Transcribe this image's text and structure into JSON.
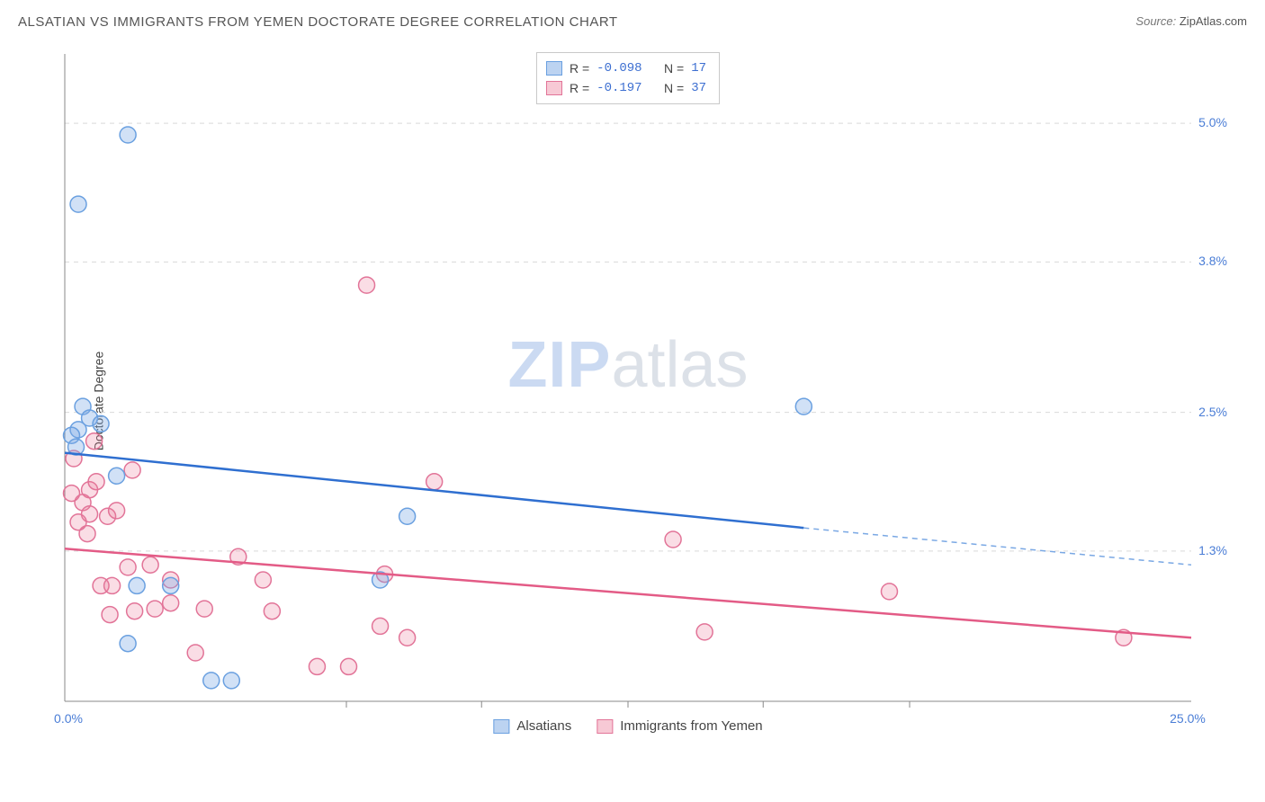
{
  "header": {
    "title": "ALSATIAN VS IMMIGRANTS FROM YEMEN DOCTORATE DEGREE CORRELATION CHART",
    "source_label": "Source:",
    "source_name": "ZipAtlas.com"
  },
  "watermark": {
    "zip": "ZIP",
    "atlas": "atlas"
  },
  "chart": {
    "type": "scatter-with-regression",
    "ylabel": "Doctorate Degree",
    "xlim": [
      0,
      25
    ],
    "ylim": [
      0,
      5.6
    ],
    "x_axis": {
      "min_label": "0.0%",
      "max_label": "25.0%",
      "tick_positions_pct": [
        25,
        37,
        50,
        62,
        75
      ]
    },
    "y_gridlines": [
      {
        "value": 1.3,
        "label": "1.3%"
      },
      {
        "value": 2.5,
        "label": "2.5%"
      },
      {
        "value": 3.8,
        "label": "3.8%"
      },
      {
        "value": 5.0,
        "label": "5.0%"
      }
    ],
    "colors": {
      "blue_stroke": "#6aa0e0",
      "blue_fill": "rgba(122,168,228,0.35)",
      "blue_line": "#2f6fd0",
      "blue_dash": "#7aa8e4",
      "pink_stroke": "#e27498",
      "pink_fill": "rgba(235,120,150,0.25)",
      "pink_line": "#e35b86",
      "grid": "#d9d9d9",
      "tick_text": "#4a7dd6",
      "background_color": "#ffffff"
    },
    "marker_radius": 9,
    "line_width": 2.5,
    "font_family": "Arial",
    "title_fontsize": 15,
    "ytick_fontsize": 14,
    "stats_legend": {
      "rows": [
        {
          "color": "blue",
          "R_label": "R =",
          "R": "-0.098",
          "N_label": "N =",
          "N": "17"
        },
        {
          "color": "pink",
          "R_label": "R =",
          "R": "-0.197",
          "N_label": "N =",
          "N": "37"
        }
      ]
    },
    "bottom_legend": {
      "series1": {
        "label": "Alsatians",
        "color": "blue"
      },
      "series2": {
        "label": "Immigrants from Yemen",
        "color": "pink"
      }
    },
    "series_blue": {
      "points": [
        [
          0.3,
          2.35
        ],
        [
          0.15,
          2.3
        ],
        [
          0.4,
          2.55
        ],
        [
          0.55,
          2.45
        ],
        [
          0.8,
          2.4
        ],
        [
          0.25,
          2.2
        ],
        [
          0.3,
          4.3
        ],
        [
          1.4,
          4.9
        ],
        [
          1.15,
          1.95
        ],
        [
          1.6,
          1.0
        ],
        [
          2.35,
          1.0
        ],
        [
          7.6,
          1.6
        ],
        [
          7.0,
          1.05
        ],
        [
          3.25,
          0.18
        ],
        [
          3.7,
          0.18
        ],
        [
          1.4,
          0.5
        ],
        [
          16.4,
          2.55
        ]
      ],
      "regression": {
        "x0": 0,
        "y0": 2.15,
        "x_solid_end": 16.4,
        "y_solid_end": 1.5,
        "x1": 25,
        "y1": 1.18
      }
    },
    "series_pink": {
      "points": [
        [
          0.2,
          2.1
        ],
        [
          0.65,
          2.25
        ],
        [
          0.55,
          1.83
        ],
        [
          0.15,
          1.8
        ],
        [
          0.4,
          1.72
        ],
        [
          0.55,
          1.62
        ],
        [
          0.7,
          1.9
        ],
        [
          0.95,
          1.6
        ],
        [
          1.5,
          2.0
        ],
        [
          1.15,
          1.65
        ],
        [
          6.7,
          3.6
        ],
        [
          8.2,
          1.9
        ],
        [
          13.5,
          1.4
        ],
        [
          0.8,
          1.0
        ],
        [
          1.05,
          1.0
        ],
        [
          1.4,
          1.16
        ],
        [
          1.9,
          1.18
        ],
        [
          2.35,
          1.05
        ],
        [
          3.85,
          1.25
        ],
        [
          4.4,
          1.05
        ],
        [
          1.0,
          0.75
        ],
        [
          1.55,
          0.78
        ],
        [
          2.0,
          0.8
        ],
        [
          2.35,
          0.85
        ],
        [
          3.1,
          0.8
        ],
        [
          4.6,
          0.78
        ],
        [
          7.1,
          1.1
        ],
        [
          7.0,
          0.65
        ],
        [
          14.2,
          0.6
        ],
        [
          18.3,
          0.95
        ],
        [
          23.5,
          0.55
        ],
        [
          5.6,
          0.3
        ],
        [
          6.3,
          0.3
        ],
        [
          7.6,
          0.55
        ],
        [
          2.9,
          0.42
        ],
        [
          0.5,
          1.45
        ],
        [
          0.3,
          1.55
        ]
      ],
      "regression": {
        "x0": 0,
        "y0": 1.32,
        "x1": 25,
        "y1": 0.55
      }
    }
  }
}
